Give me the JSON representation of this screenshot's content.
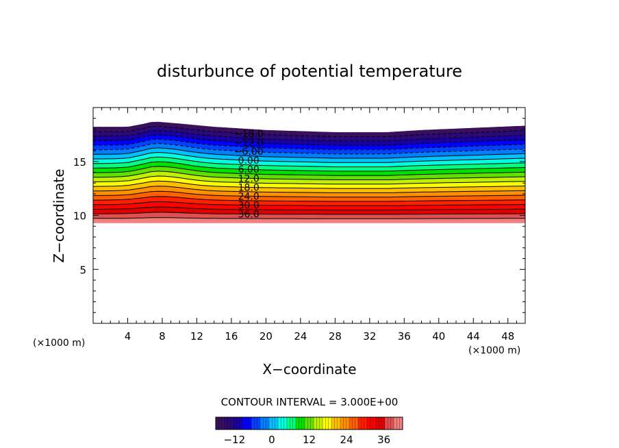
{
  "chart_data": {
    "type": "contour",
    "title": "disturbunce of potential temperature",
    "xlabel": "X−coordinate",
    "ylabel": "Z−coordinate",
    "x_unit_left": "(×1000 m)",
    "x_unit_right": "(×1000 m)",
    "xlim": [
      0,
      50
    ],
    "ylim": [
      0,
      20
    ],
    "x_ticks": [
      4,
      8,
      12,
      16,
      20,
      24,
      28,
      32,
      36,
      40,
      44,
      48
    ],
    "y_ticks": [
      5,
      10,
      15
    ],
    "contour_interval_text": "CONTOUR INTERVAL =  3.000E+00",
    "contour_levels": [
      -18,
      -15,
      -12,
      -9,
      -6,
      -3,
      0,
      3,
      6,
      9,
      12,
      15,
      18,
      21,
      24,
      27,
      30,
      33,
      36,
      39
    ],
    "contour_labels": [
      "−18.0",
      "−12.0",
      "−6.00",
      "0.00",
      "6.00",
      "12.0",
      "18.0",
      "24.0",
      "30.0",
      "36.0"
    ],
    "field_extent": {
      "z_bottom": 9.3,
      "z_top_profile": {
        "x": [
          0,
          4,
          6,
          7,
          10,
          14,
          20,
          28,
          34,
          38,
          44,
          50
        ],
        "z": [
          18.2,
          18.2,
          18.5,
          18.7,
          18.5,
          18.2,
          17.9,
          17.7,
          17.7,
          17.9,
          18.1,
          18.3
        ]
      }
    },
    "colorbar": {
      "min": -18,
      "max": 42,
      "tick_values": [
        -12,
        0,
        12,
        24,
        36
      ],
      "tick_labels": [
        "−12",
        "0",
        "12",
        "24",
        "36"
      ]
    },
    "colors": [
      "#3a0f5c",
      "#2a0a78",
      "#1a00a0",
      "#0000ff",
      "#0040ff",
      "#0080ff",
      "#00c0ff",
      "#00ffe0",
      "#00ff80",
      "#00e000",
      "#60e000",
      "#c0f000",
      "#ffff00",
      "#ffc000",
      "#ff9000",
      "#ff6000",
      "#ff2000",
      "#ff0000",
      "#e00000",
      "#e05050",
      "#f08080"
    ]
  }
}
